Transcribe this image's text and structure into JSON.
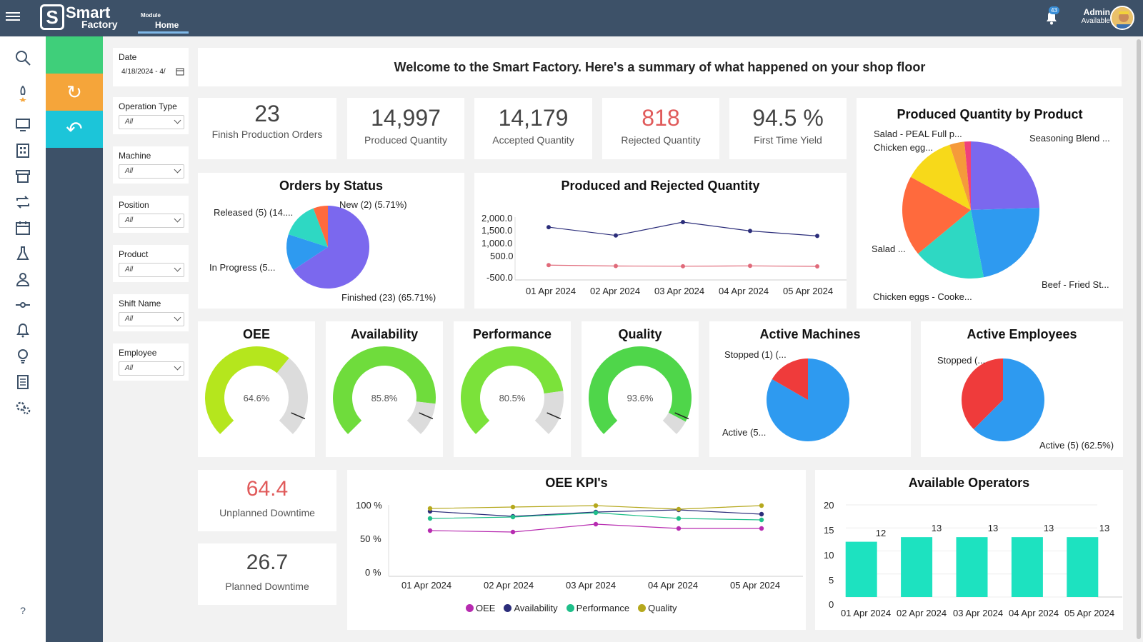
{
  "header": {
    "logo_line1": "Smart",
    "logo_line2": "Factory",
    "module_label": "Module",
    "module_value": "Home",
    "notification_count": "43",
    "user_name": "Admin",
    "user_status": "Available"
  },
  "sidebar": {
    "icons": [
      "search-icon",
      "rocket-icon",
      "monitor-icon",
      "building-icon",
      "archive-icon",
      "repeat-icon",
      "calendar-icon",
      "flask-icon",
      "users-icon",
      "git-commit-icon",
      "bell-icon",
      "lightbulb-icon",
      "document-icon",
      "gears-icon"
    ],
    "help": "?"
  },
  "quick_panel": {
    "refresh_icon": "↻",
    "back_icon": "↶"
  },
  "filters": [
    {
      "label": "Date",
      "value": "4/18/2024 - 4/"
    },
    {
      "label": "Operation Type",
      "value": "All"
    },
    {
      "label": "Machine",
      "value": "All"
    },
    {
      "label": "Position",
      "value": "All"
    },
    {
      "label": "Product",
      "value": "All"
    },
    {
      "label": "Shift Name",
      "value": "All"
    },
    {
      "label": "Employee",
      "value": "All"
    }
  ],
  "welcome": "Welcome to the Smart Factory. Here's a summary of what happened on your shop floor",
  "kpis": [
    {
      "value": "23",
      "caption": "Finish Production Orders",
      "color": "#444444"
    },
    {
      "value": "14,997",
      "caption": "Produced Quantity",
      "color": "#444444"
    },
    {
      "value": "14,179",
      "caption": "Accepted Quantity",
      "color": "#444444"
    },
    {
      "value": "818",
      "caption": "Rejected Quantity",
      "color": "#e05a5a"
    },
    {
      "value": "94.5 %",
      "caption": "First Time Yield",
      "color": "#444444"
    }
  ],
  "downtime": [
    {
      "value": "64.4",
      "caption": "Unplanned Downtime",
      "color": "#e05a5a"
    },
    {
      "value": "26.7",
      "caption": "Planned Downtime",
      "color": "#444444"
    }
  ],
  "chart_data": [
    {
      "id": "orders_by_status",
      "type": "pie",
      "title": "Orders by Status",
      "slices": [
        {
          "label": "Finished",
          "value": 23,
          "pct": 65.71,
          "text": "Finished (23) (65.71%)",
          "color": "#7b68ee"
        },
        {
          "label": "In Progress",
          "value": 5,
          "pct": 14.29,
          "text": "In Progress (5...",
          "color": "#2e9af0"
        },
        {
          "label": "Released",
          "value": 5,
          "pct": 14.29,
          "text": "Released (5) (14....",
          "color": "#2ed8c3"
        },
        {
          "label": "New",
          "value": 2,
          "pct": 5.71,
          "text": "New (2) (5.71%)",
          "color": "#ff6a3d"
        }
      ]
    },
    {
      "id": "produced_rejected",
      "type": "line",
      "title": "Produced and Rejected Quantity",
      "categories": [
        "01 Apr 2024",
        "02 Apr 2024",
        "03 Apr 2024",
        "04 Apr 2024",
        "05 Apr 2024"
      ],
      "yticks": [
        "2,000.0",
        "1,500.0",
        "1,000.0",
        "500.0",
        "-500.0"
      ],
      "ylim": [
        -500,
        2000
      ],
      "series": [
        {
          "name": "Produced",
          "values": [
            1600,
            1270,
            1800,
            1450,
            1250
          ],
          "color": "#2b2d7a"
        },
        {
          "name": "Rejected",
          "values": [
            90,
            55,
            45,
            60,
            40
          ],
          "color": "#e06a7a"
        }
      ]
    },
    {
      "id": "produced_by_product",
      "type": "pie",
      "title": "Produced Quantity by Product",
      "slices": [
        {
          "label": "Seasoning Blend ...",
          "pct": 24.5,
          "color": "#7b68ee"
        },
        {
          "label": "Beef - Fried St...",
          "pct": 22.5,
          "color": "#2e9af0"
        },
        {
          "label": "Chicken eggs - Cooke...",
          "pct": 17,
          "color": "#2ed8c3"
        },
        {
          "label": "Salad ...",
          "pct": 19,
          "color": "#ff6a3d"
        },
        {
          "label": "Chicken egg...",
          "pct": 12,
          "color": "#f7d91a"
        },
        {
          "label": "Salad - PEAL Full p...",
          "pct": 3.5,
          "color": "#f59a3a"
        },
        {
          "label": "",
          "pct": 1.5,
          "color": "#f0407a"
        }
      ]
    },
    {
      "id": "oee",
      "type": "gauge",
      "title": "OEE",
      "value": 64.6,
      "display": "64.6%",
      "color": "#b5e61d"
    },
    {
      "id": "availability",
      "type": "gauge",
      "title": "Availability",
      "value": 85.8,
      "display": "85.8%",
      "color": "#6fdc3c"
    },
    {
      "id": "performance",
      "type": "gauge",
      "title": "Performance",
      "value": 80.5,
      "display": "80.5%",
      "color": "#7be23a"
    },
    {
      "id": "quality",
      "type": "gauge",
      "title": "Quality",
      "value": 93.6,
      "display": "93.6%",
      "color": "#4fd64a"
    },
    {
      "id": "active_machines",
      "type": "pie",
      "title": "Active Machines",
      "slices": [
        {
          "label": "Active",
          "text": "Active (5...",
          "pct": 83.33,
          "color": "#2e9af0"
        },
        {
          "label": "Stopped",
          "text": "Stopped (1) (...",
          "pct": 16.67,
          "color": "#ef3b3b"
        }
      ]
    },
    {
      "id": "active_employees",
      "type": "pie",
      "title": "Active Employees",
      "slices": [
        {
          "label": "Active",
          "text": "Active (5) (62.5%)",
          "pct": 62.5,
          "color": "#2e9af0"
        },
        {
          "label": "Stopped",
          "text": "Stopped (...",
          "pct": 37.5,
          "color": "#ef3b3b"
        }
      ]
    },
    {
      "id": "oee_kpis",
      "type": "line",
      "title": "OEE KPI's",
      "categories": [
        "01 Apr 2024",
        "02 Apr 2024",
        "03 Apr 2024",
        "04 Apr 2024",
        "05 Apr 2024"
      ],
      "yticks": [
        "100 %",
        "50 %",
        "0 %"
      ],
      "ylim": [
        0,
        100
      ],
      "series": [
        {
          "name": "OEE",
          "values": [
            64,
            62,
            73,
            67,
            67
          ],
          "color": "#b72bb0"
        },
        {
          "name": "Availability",
          "values": [
            91,
            84,
            90,
            93,
            87
          ],
          "color": "#2b2d7a"
        },
        {
          "name": "Performance",
          "values": [
            81,
            83,
            89,
            81,
            79
          ],
          "color": "#1fbf8a"
        },
        {
          "name": "Quality",
          "values": [
            95,
            97,
            99,
            94,
            99
          ],
          "color": "#b5a81d"
        }
      ]
    },
    {
      "id": "available_operators",
      "type": "bar",
      "title": "Available Operators",
      "categories": [
        "01 Apr 2024",
        "02 Apr 2024",
        "03 Apr 2024",
        "04 Apr 2024",
        "05 Apr 2024"
      ],
      "values": [
        12,
        13,
        13,
        13,
        13
      ],
      "yticks": [
        "20",
        "15",
        "10",
        "5",
        "0"
      ],
      "ylim": [
        0,
        20
      ],
      "color": "#1de2c0"
    }
  ]
}
